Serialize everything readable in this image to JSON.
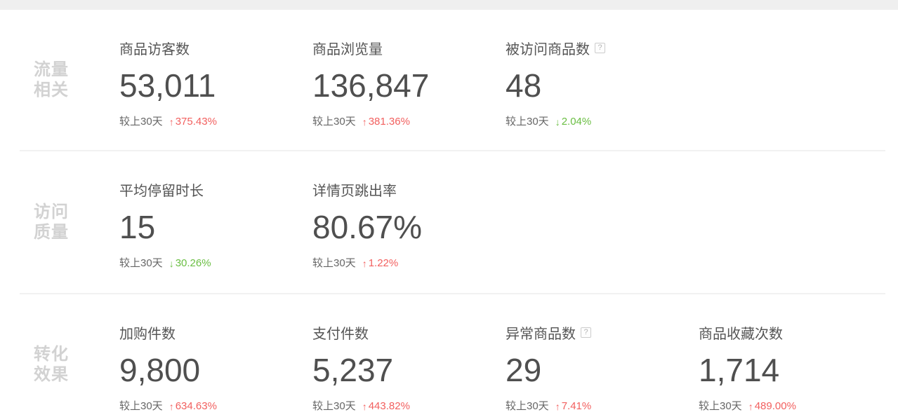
{
  "page": {
    "topbar_color": "#efefef",
    "background": "#ffffff",
    "divider_color": "#f1f1f1"
  },
  "colors": {
    "increase": "#f2605f",
    "decrease": "#6abe43",
    "section_label": "#d2d2d2",
    "metric_text": "#555555"
  },
  "icons": {
    "help": "?",
    "up_arrow": "↑",
    "down_arrow": "↓"
  },
  "sections": [
    {
      "label": "流量相关",
      "label_line1": "流量",
      "label_line2": "相关",
      "metrics": [
        {
          "title": "商品访客数",
          "value": "53,011",
          "compare_label": "较上30天",
          "direction": "up",
          "change": "375.43%"
        },
        {
          "title": "商品浏览量",
          "value": "136,847",
          "compare_label": "较上30天",
          "direction": "up",
          "change": "381.36%"
        },
        {
          "title": "被访问商品数",
          "has_help": true,
          "value": "48",
          "compare_label": "较上30天",
          "direction": "down",
          "change": "2.04%"
        }
      ]
    },
    {
      "label": "访问质量",
      "label_line1": "访问",
      "label_line2": "质量",
      "metrics": [
        {
          "title": "平均停留时长",
          "value": "15",
          "compare_label": "较上30天",
          "direction": "down",
          "change": "30.26%"
        },
        {
          "title": "详情页跳出率",
          "value": "80.67%",
          "compare_label": "较上30天",
          "direction": "up",
          "change": "1.22%"
        }
      ]
    },
    {
      "label": "转化效果",
      "label_line1": "转化",
      "label_line2": "效果",
      "metrics": [
        {
          "title": "加购件数",
          "value": "9,800",
          "compare_label": "较上30天",
          "direction": "up",
          "change": "634.63%"
        },
        {
          "title": "支付件数",
          "value": "5,237",
          "compare_label": "较上30天",
          "direction": "up",
          "change": "443.82%"
        },
        {
          "title": "异常商品数",
          "has_help": true,
          "value": "29",
          "compare_label": "较上30天",
          "direction": "up",
          "change": "7.41%"
        },
        {
          "title": "商品收藏次数",
          "value": "1,714",
          "compare_label": "较上30天",
          "direction": "up",
          "change": "489.00%"
        }
      ]
    }
  ]
}
